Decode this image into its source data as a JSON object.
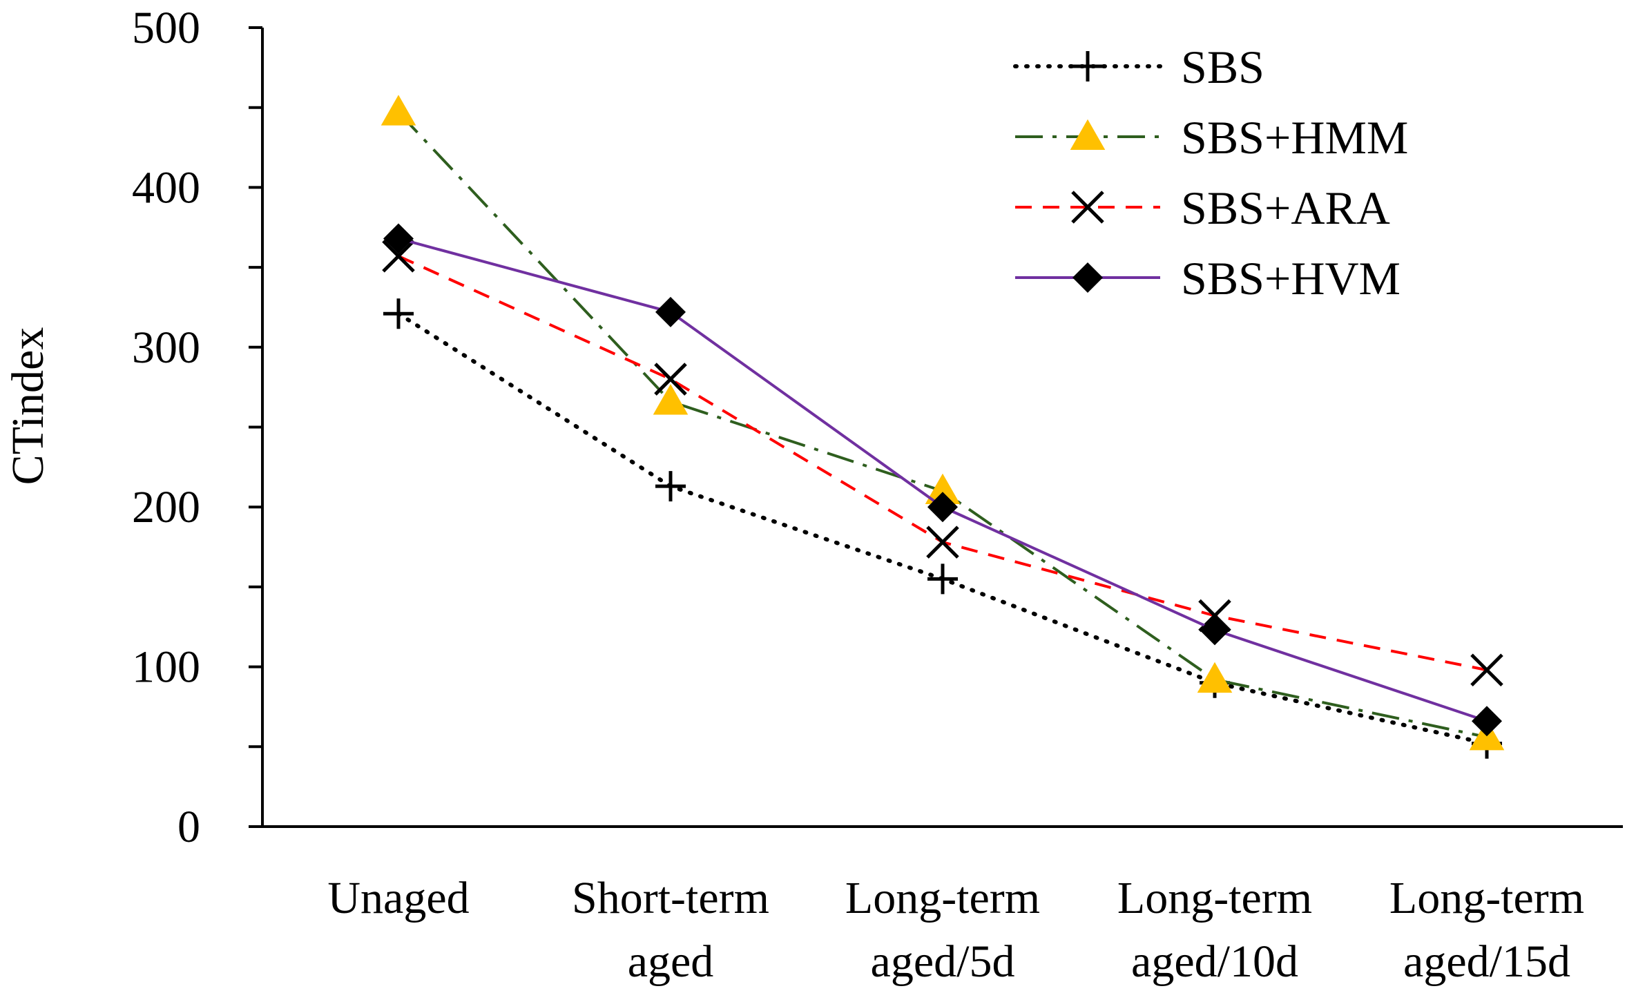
{
  "chart_data": {
    "type": "line",
    "title": "",
    "xlabel": "",
    "ylabel": "CTindex",
    "ylim": [
      0,
      500
    ],
    "yticks": [
      "0",
      "100",
      "200",
      "300",
      "400",
      "500"
    ],
    "categories": [
      [
        "Unaged"
      ],
      [
        "Short-term",
        "aged"
      ],
      [
        "Long-term",
        "aged/5d"
      ],
      [
        "Long-term",
        "aged/10d"
      ],
      [
        "Long-term",
        "aged/15d"
      ]
    ],
    "series": [
      {
        "name": "SBS",
        "values": [
          321,
          213,
          155,
          90,
          52
        ],
        "color": "#000000",
        "line": "dotted",
        "marker": "plus"
      },
      {
        "name": "SBS+HMM",
        "values": [
          447,
          266,
          210,
          92,
          56
        ],
        "color": "#2e5e1e",
        "line": "dashdot",
        "marker": "triangle",
        "marker_color": "#ffc000"
      },
      {
        "name": "SBS+ARA",
        "values": [
          357,
          280,
          178,
          132,
          98
        ],
        "color": "#ff0000",
        "line": "dashed",
        "marker": "x"
      },
      {
        "name": "SBS+HVM",
        "values": [
          368,
          322,
          200,
          123,
          66
        ],
        "color": "#7030a0",
        "line": "solid",
        "marker": "diamond"
      }
    ],
    "grid": false,
    "legend_position": "top-right"
  }
}
